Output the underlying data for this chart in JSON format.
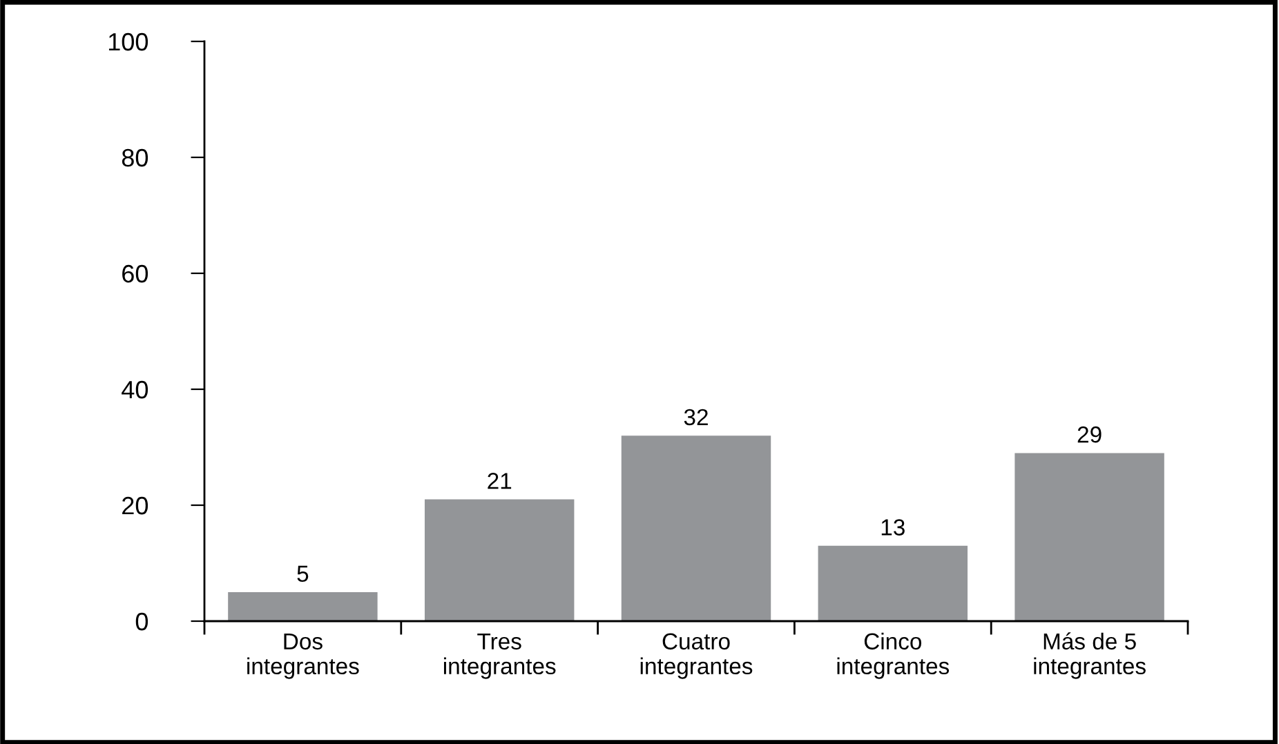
{
  "chart_data": {
    "type": "bar",
    "categories": [
      "Dos\nintegrantes",
      "Tres\nintegrantes",
      "Cuatro\nintegrantes",
      "Cinco\nintegrantes",
      "Más de 5\nintegrantes"
    ],
    "values": [
      5,
      21,
      32,
      13,
      29
    ],
    "color": "#939598",
    "ylim": [
      0,
      100
    ],
    "yticks": [
      0,
      20,
      40,
      60,
      80,
      100
    ],
    "grid": false,
    "data_labels": true
  }
}
